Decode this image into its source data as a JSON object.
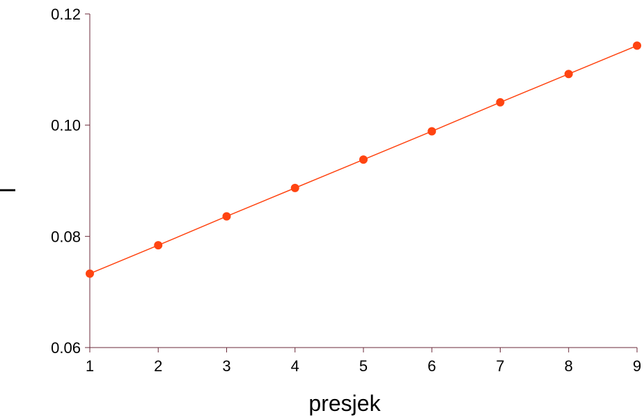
{
  "chart_data": {
    "type": "line",
    "title": "",
    "xlabel": "presjek",
    "ylabel": "I",
    "x": [
      1,
      2,
      3,
      4,
      5,
      6,
      7,
      8,
      9
    ],
    "series": [
      {
        "values": [
          0.0733,
          0.0784,
          0.0836,
          0.0887,
          0.0938,
          0.0989,
          0.1041,
          0.1092,
          0.1143
        ]
      }
    ],
    "xlim": [
      1,
      9
    ],
    "ylim": [
      0.06,
      0.12
    ],
    "xticks": [
      1,
      2,
      3,
      4,
      5,
      6,
      7,
      8,
      9
    ],
    "yticks": [
      "0.06",
      "0.08",
      "0.10",
      "0.12"
    ],
    "grid": false,
    "legend": "none",
    "colors": {
      "line": "#ff4411",
      "marker": "#ff4411",
      "axis": "#6b2a3a"
    }
  }
}
